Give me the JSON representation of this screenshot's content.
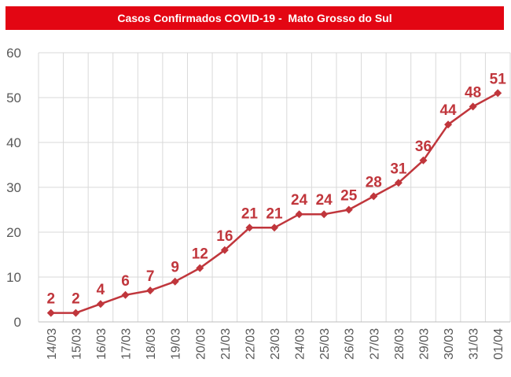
{
  "chart_data": {
    "type": "line",
    "title": "Casos Confirmados COVID-19 -  Mato Grosso do Sul",
    "xlabel": "",
    "ylabel": "",
    "categories": [
      "14/03",
      "15/03",
      "16/03",
      "17/03",
      "18/03",
      "19/03",
      "20/03",
      "21/03",
      "22/03",
      "23/03",
      "24/03",
      "25/03",
      "26/03",
      "27/03",
      "28/03",
      "29/03",
      "30/03",
      "31/03",
      "01/04"
    ],
    "series": [
      {
        "values": [
          2,
          2,
          4,
          6,
          7,
          9,
          12,
          16,
          21,
          21,
          24,
          24,
          25,
          28,
          31,
          36,
          44,
          48,
          51
        ]
      }
    ],
    "ylim": [
      0,
      60
    ],
    "yticks": [
      "0",
      "10",
      "20",
      "30",
      "40",
      "50",
      "60"
    ],
    "grid": true,
    "legend": "none",
    "line_color": "#c0363c",
    "title_bg_color": "#e30613",
    "marker": "diamond"
  }
}
